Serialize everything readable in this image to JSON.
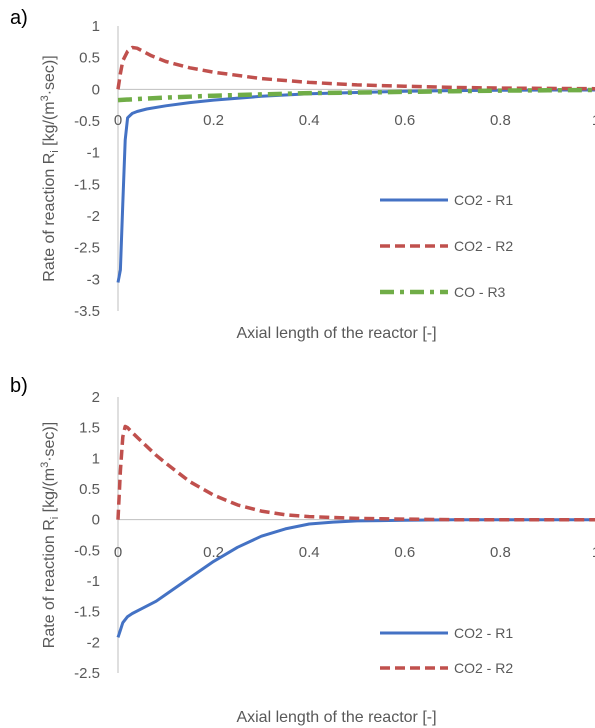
{
  "chart_data": [
    {
      "panel_label": "a)",
      "type": "line",
      "xlabel": "Axial length of the reactor [-]",
      "ylabel": {
        "prefix": "Rate of reaction R",
        "sub": "i",
        "mid": " [kg/(m",
        "sup": "3",
        "suffix": "·sec)]"
      },
      "xlim": [
        0,
        1
      ],
      "ylim": [
        -3.5,
        1
      ],
      "x_ticks": [
        "0",
        "0.2",
        "0.4",
        "0.6",
        "0.8",
        "1"
      ],
      "y_ticks": [
        "1",
        "0.5",
        "0",
        "-0.5",
        "-1",
        "-1.5",
        "-2",
        "-2.5",
        "-3",
        "-3.5"
      ],
      "grid": false,
      "legend_position": "right",
      "series": [
        {
          "name": "CO2 - R1",
          "color": "#4472C4",
          "style": "solid",
          "x": [
            0,
            0.005,
            0.01,
            0.015,
            0.02,
            0.03,
            0.04,
            0.06,
            0.1,
            0.15,
            0.2,
            0.3,
            0.4,
            0.5,
            0.6,
            0.7,
            0.8,
            0.9,
            1.0
          ],
          "y": [
            -3.05,
            -2.85,
            -1.8,
            -0.8,
            -0.45,
            -0.38,
            -0.35,
            -0.31,
            -0.26,
            -0.21,
            -0.17,
            -0.11,
            -0.07,
            -0.05,
            -0.03,
            -0.02,
            -0.015,
            -0.01,
            -0.01
          ]
        },
        {
          "name": "CO2 - R2",
          "color": "#C0504D",
          "style": "dashed",
          "x": [
            0,
            0.005,
            0.01,
            0.02,
            0.03,
            0.04,
            0.05,
            0.07,
            0.1,
            0.15,
            0.2,
            0.3,
            0.4,
            0.5,
            0.6,
            0.7,
            0.8,
            0.9,
            1.0
          ],
          "y": [
            0.0,
            0.25,
            0.45,
            0.6,
            0.66,
            0.65,
            0.61,
            0.53,
            0.44,
            0.34,
            0.27,
            0.17,
            0.11,
            0.07,
            0.05,
            0.03,
            0.02,
            0.015,
            0.01
          ]
        },
        {
          "name": "CO - R3",
          "color": "#70AD47",
          "style": "dashdot",
          "x": [
            0,
            0.05,
            0.1,
            0.2,
            0.3,
            0.4,
            0.5,
            0.6,
            0.7,
            0.8,
            0.9,
            1.0
          ],
          "y": [
            -0.17,
            -0.15,
            -0.13,
            -0.1,
            -0.08,
            -0.06,
            -0.05,
            -0.04,
            -0.03,
            -0.02,
            -0.015,
            -0.01
          ]
        }
      ]
    },
    {
      "panel_label": "b)",
      "type": "line",
      "xlabel": "Axial length of the reactor [-]",
      "ylabel": {
        "prefix": "Rate of reaction R",
        "sub": "i",
        "mid": " [kg/(m",
        "sup": "3",
        "suffix": "·sec)]"
      },
      "xlim": [
        0,
        1
      ],
      "ylim": [
        -2.5,
        2
      ],
      "x_ticks": [
        "0",
        "0.2",
        "0.4",
        "0.6",
        "0.8",
        "1"
      ],
      "y_ticks": [
        "2",
        "1.5",
        "1",
        "0.5",
        "0",
        "-0.5",
        "-1",
        "-1.5",
        "-2",
        "-2.5"
      ],
      "grid": false,
      "legend_position": "right",
      "series": [
        {
          "name": "CO2 - R1",
          "color": "#4472C4",
          "style": "solid",
          "x": [
            0,
            0.005,
            0.01,
            0.02,
            0.03,
            0.05,
            0.08,
            0.1,
            0.15,
            0.2,
            0.25,
            0.3,
            0.35,
            0.4,
            0.45,
            0.5,
            0.6,
            0.7,
            0.8,
            0.9,
            1.0
          ],
          "y": [
            -1.92,
            -1.8,
            -1.68,
            -1.58,
            -1.53,
            -1.45,
            -1.33,
            -1.22,
            -0.95,
            -0.68,
            -0.45,
            -0.27,
            -0.15,
            -0.07,
            -0.04,
            -0.02,
            -0.01,
            0,
            0,
            0,
            0
          ]
        },
        {
          "name": "CO2 - R2",
          "color": "#C0504D",
          "style": "dashed",
          "x": [
            0,
            0.005,
            0.01,
            0.015,
            0.02,
            0.03,
            0.05,
            0.08,
            0.1,
            0.15,
            0.2,
            0.25,
            0.3,
            0.35,
            0.4,
            0.5,
            0.6,
            0.7,
            0.8,
            0.9,
            1.0
          ],
          "y": [
            0,
            0.8,
            1.35,
            1.52,
            1.5,
            1.42,
            1.27,
            1.05,
            0.92,
            0.62,
            0.4,
            0.24,
            0.14,
            0.08,
            0.05,
            0.02,
            0.01,
            0,
            0,
            0,
            0
          ]
        }
      ]
    }
  ]
}
